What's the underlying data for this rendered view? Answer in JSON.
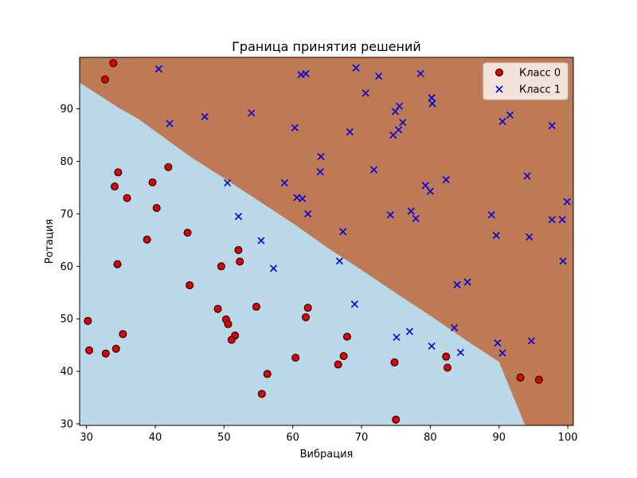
{
  "chart_data": {
    "type": "scatter",
    "title": "Граница принятия решений",
    "xlabel": "Вибрация",
    "ylabel": "Ротация",
    "xlim": [
      29,
      100.8
    ],
    "ylim": [
      29.7,
      99.8
    ],
    "xticks": [
      30,
      40,
      50,
      60,
      70,
      80,
      90,
      100
    ],
    "yticks": [
      30,
      40,
      50,
      60,
      70,
      80,
      90
    ],
    "grid": false,
    "legend_position": "top-right",
    "regions": {
      "class0_color": "#bbd8e8",
      "class1_color": "#bd7a55",
      "boundary": [
        [
          29,
          95.0
        ],
        [
          34.8,
          90.1
        ],
        [
          37.5,
          88.1
        ],
        [
          45.2,
          80.8
        ],
        [
          50,
          76.8
        ],
        [
          55,
          72.5
        ],
        [
          60,
          68.2
        ],
        [
          65,
          63.6
        ],
        [
          70,
          59.3
        ],
        [
          75,
          54.9
        ],
        [
          80,
          50.6
        ],
        [
          85,
          46.1
        ],
        [
          90,
          41.8
        ],
        [
          93.8,
          29.7
        ]
      ]
    },
    "series": [
      {
        "name": "Класс 0",
        "marker": "circle",
        "color": "#e00000",
        "edge_color": "#000000",
        "points": [
          [
            33.9,
            98.7
          ],
          [
            32.7,
            95.6
          ],
          [
            41.9,
            78.9
          ],
          [
            34.6,
            77.9
          ],
          [
            34.1,
            75.2
          ],
          [
            39.6,
            76.0
          ],
          [
            35.9,
            73.0
          ],
          [
            40.2,
            71.1
          ],
          [
            44.7,
            66.4
          ],
          [
            38.8,
            65.1
          ],
          [
            34.5,
            60.4
          ],
          [
            49.6,
            60.0
          ],
          [
            52.1,
            63.1
          ],
          [
            52.3,
            60.9
          ],
          [
            45.0,
            56.4
          ],
          [
            30.2,
            49.6
          ],
          [
            49.1,
            51.9
          ],
          [
            54.7,
            52.3
          ],
          [
            62.2,
            52.1
          ],
          [
            61.9,
            50.3
          ],
          [
            50.3,
            49.9
          ],
          [
            50.6,
            49.0
          ],
          [
            51.6,
            46.8
          ],
          [
            51.1,
            46.0
          ],
          [
            67.9,
            46.6
          ],
          [
            35.3,
            47.1
          ],
          [
            30.4,
            44.0
          ],
          [
            34.3,
            44.3
          ],
          [
            32.8,
            43.4
          ],
          [
            60.4,
            42.6
          ],
          [
            67.4,
            42.9
          ],
          [
            66.6,
            41.3
          ],
          [
            56.3,
            39.5
          ],
          [
            74.8,
            41.7
          ],
          [
            82.3,
            42.8
          ],
          [
            82.5,
            40.7
          ],
          [
            93.1,
            38.8
          ],
          [
            95.8,
            38.4
          ],
          [
            55.5,
            35.7
          ],
          [
            75.0,
            30.8
          ]
        ]
      },
      {
        "name": "Класс 1",
        "marker": "x",
        "color": "#0000dd",
        "points": [
          [
            40.5,
            97.6
          ],
          [
            69.2,
            97.8
          ],
          [
            61.2,
            96.5
          ],
          [
            61.9,
            96.7
          ],
          [
            72.5,
            96.2
          ],
          [
            78.6,
            96.7
          ],
          [
            70.6,
            93.0
          ],
          [
            80.2,
            92.1
          ],
          [
            80.3,
            91.0
          ],
          [
            75.5,
            90.5
          ],
          [
            74.9,
            89.5
          ],
          [
            42.1,
            87.2
          ],
          [
            47.2,
            88.5
          ],
          [
            54.0,
            89.2
          ],
          [
            91.6,
            88.8
          ],
          [
            90.5,
            87.6
          ],
          [
            97.7,
            86.8
          ],
          [
            60.3,
            86.4
          ],
          [
            68.3,
            85.6
          ],
          [
            75.4,
            86.0
          ],
          [
            76.0,
            87.4
          ],
          [
            74.6,
            85.0
          ],
          [
            64.1,
            80.9
          ],
          [
            64.0,
            78.0
          ],
          [
            71.8,
            78.4
          ],
          [
            58.8,
            75.9
          ],
          [
            50.5,
            75.9
          ],
          [
            82.3,
            76.5
          ],
          [
            79.3,
            75.4
          ],
          [
            80.0,
            74.3
          ],
          [
            94.1,
            77.2
          ],
          [
            60.6,
            73.1
          ],
          [
            61.4,
            72.9
          ],
          [
            99.9,
            72.3
          ],
          [
            52.1,
            69.5
          ],
          [
            62.2,
            70.0
          ],
          [
            74.2,
            69.8
          ],
          [
            77.2,
            70.5
          ],
          [
            77.9,
            69.1
          ],
          [
            88.9,
            69.8
          ],
          [
            97.7,
            68.9
          ],
          [
            99.2,
            68.9
          ],
          [
            67.3,
            66.6
          ],
          [
            89.6,
            65.9
          ],
          [
            94.4,
            65.6
          ],
          [
            55.4,
            64.9
          ],
          [
            66.8,
            61.0
          ],
          [
            99.3,
            61.0
          ],
          [
            57.2,
            59.6
          ],
          [
            85.4,
            57.0
          ],
          [
            83.9,
            56.5
          ],
          [
            69.0,
            52.8
          ],
          [
            83.5,
            48.3
          ],
          [
            77.0,
            47.6
          ],
          [
            75.1,
            46.5
          ],
          [
            94.7,
            45.8
          ],
          [
            89.8,
            45.4
          ],
          [
            80.2,
            44.8
          ],
          [
            84.4,
            43.6
          ],
          [
            90.5,
            43.5
          ]
        ]
      }
    ]
  }
}
